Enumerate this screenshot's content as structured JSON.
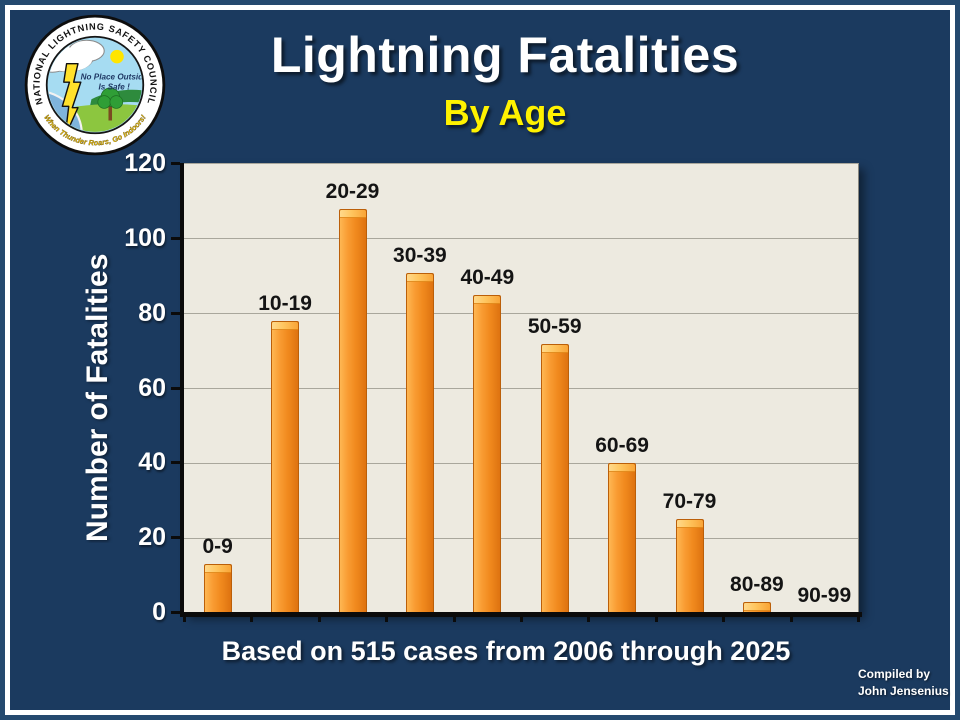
{
  "header": {
    "title": "Lightning Fatalities",
    "subtitle": "By Age"
  },
  "logo": {
    "ring_top": "NATIONAL LIGHTNING SAFETY COUNCIL",
    "ring_bottom": "When Thunder Roars, Go Indoors!",
    "center_line1": "No Place Outside",
    "center_line2": "Is Safe !"
  },
  "chart_data": {
    "type": "bar",
    "title": "Lightning Fatalities By Age",
    "categories": [
      "0-9",
      "10-19",
      "20-29",
      "30-39",
      "40-49",
      "50-59",
      "60-69",
      "70-79",
      "80-89",
      "90-99"
    ],
    "values": [
      13,
      78,
      108,
      91,
      85,
      72,
      40,
      25,
      3,
      0
    ],
    "xlabel": "",
    "ylabel": "Number of Fatalities",
    "ylim": [
      0,
      120
    ],
    "yticks": [
      0,
      20,
      40,
      60,
      80,
      100,
      120
    ],
    "grid": true,
    "legend": false,
    "bar_color": "#F6921E",
    "plot_background": "#EDEAE0",
    "slide_background": "#1B3A5F",
    "total_cases": 515
  },
  "footer": {
    "caption": "Based on 515 cases from 2006 through 2025",
    "credit_line1": "Compiled by",
    "credit_line2": "John Jensenius"
  },
  "colors": {
    "background": "#1B3A5F",
    "title": "#FFFFFF",
    "subtitle": "#FFF200",
    "bar": "#F6921E",
    "plot_background": "#EDEAE0"
  }
}
